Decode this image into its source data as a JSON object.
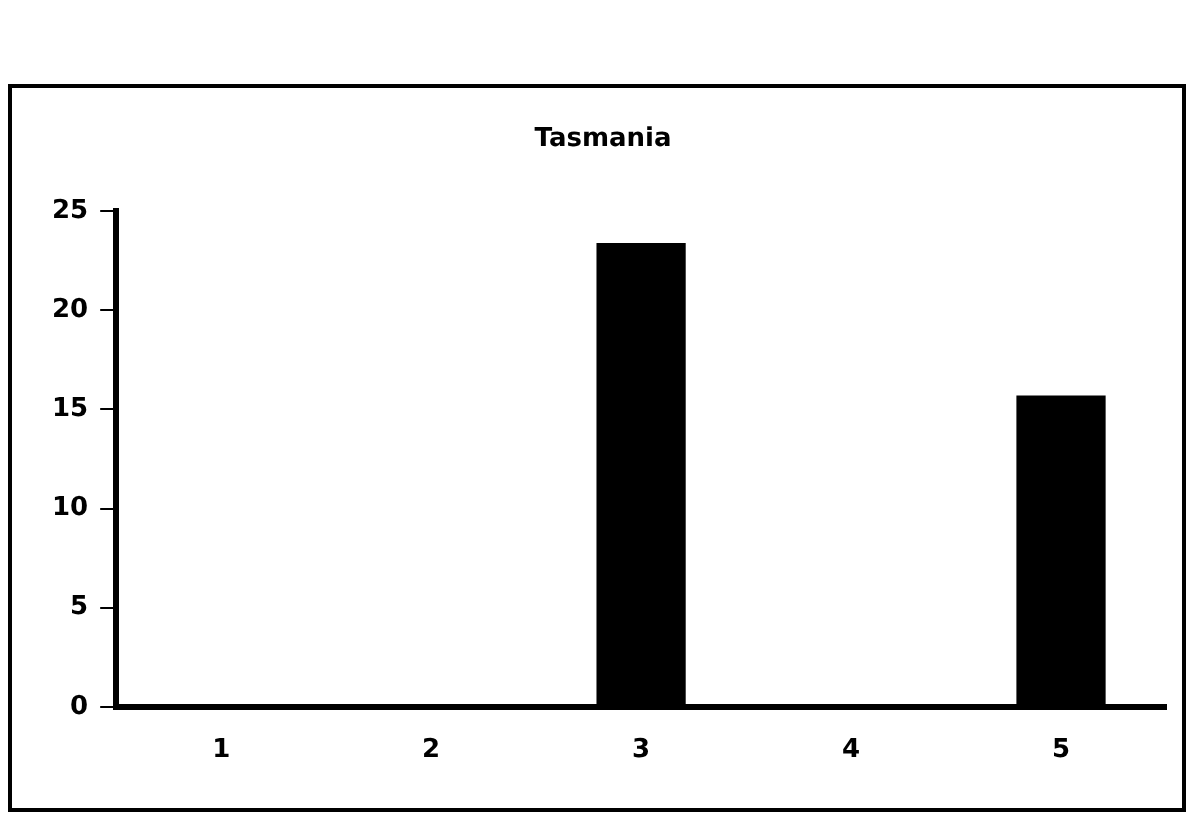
{
  "chart_data": {
    "type": "bar",
    "title": "Tasmania",
    "categories": [
      "1",
      "2",
      "3",
      "4",
      "5"
    ],
    "values": [
      0,
      0,
      23.4,
      0,
      15.7
    ],
    "color": "#000000",
    "ylim": [
      0,
      25
    ],
    "yticks": [
      0,
      5,
      10,
      15,
      20,
      25
    ],
    "grid": false,
    "legend": false
  }
}
